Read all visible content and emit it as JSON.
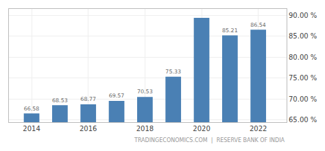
{
  "chart_data": {
    "type": "bar",
    "x": [
      2014,
      2015,
      2016,
      2017,
      2018,
      2019,
      2020,
      2021,
      2022
    ],
    "values": [
      66.58,
      68.53,
      68.77,
      69.57,
      70.53,
      75.33,
      89.36,
      85.21,
      86.54
    ],
    "value_labels": [
      "66.58",
      "68.53",
      "68.77",
      "69.57",
      "70.53",
      "75.33",
      null,
      "85.21",
      "86.54"
    ],
    "data_labels": true,
    "color": "#4a80b4",
    "xlim": [
      2013.2,
      2023.0
    ],
    "xticks": [
      2014,
      2016,
      2018,
      2020,
      2022
    ],
    "ylim": [
      64.5,
      91.5
    ],
    "yticks": [
      {
        "value": 65,
        "label": "65.00 %"
      },
      {
        "value": 70,
        "label": "70.00 %"
      },
      {
        "value": 75,
        "label": "75.00 %"
      },
      {
        "value": 80,
        "label": "80.00 %"
      },
      {
        "value": 85,
        "label": "85.00 %"
      },
      {
        "value": 90,
        "label": "90.00 %"
      }
    ],
    "grid": true,
    "annotations": [
      "TRADINGECONOMICS.COM  |  RESERVE BANK OF INDIA"
    ]
  }
}
